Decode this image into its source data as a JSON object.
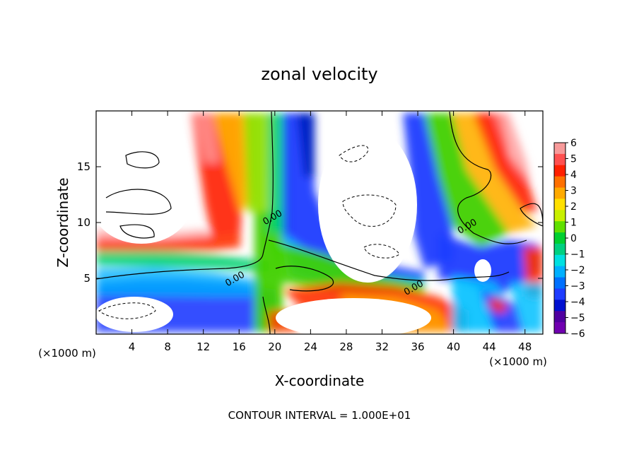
{
  "chart_data": {
    "type": "heatmap",
    "title": "zonal velocity",
    "xlabel": "X-coordinate",
    "ylabel": "Z-coordinate",
    "x_unit_note": "(×1000 m)",
    "y_unit_note": "(×1000 m)",
    "xlim": [
      0,
      50
    ],
    "ylim": [
      0,
      20
    ],
    "x_ticks": [
      4,
      8,
      12,
      16,
      20,
      24,
      28,
      32,
      36,
      40,
      44,
      48
    ],
    "y_ticks": [
      5,
      10,
      15
    ],
    "colorbar": {
      "ticks": [
        6,
        5,
        4,
        3,
        2,
        1,
        0,
        -1,
        -2,
        -3,
        -4,
        -5,
        -6
      ],
      "tick_labels": [
        "6",
        "5",
        "4",
        "3",
        "2",
        "1",
        "0",
        "−1",
        "−2",
        "−3",
        "−4",
        "−5",
        "−6"
      ],
      "range": [
        -6,
        6
      ]
    },
    "contour_labels": [
      {
        "text": "0.00",
        "x": 15.5,
        "z": 5.0
      },
      {
        "text": "0.00",
        "x": 19.7,
        "z": 10.5
      },
      {
        "text": "0.00",
        "x": 41.5,
        "z": 9.7
      },
      {
        "text": "0.00",
        "x": 35.5,
        "z": 4.2
      }
    ],
    "footer": "CONTOUR INTERVAL = 1.000E+01"
  }
}
